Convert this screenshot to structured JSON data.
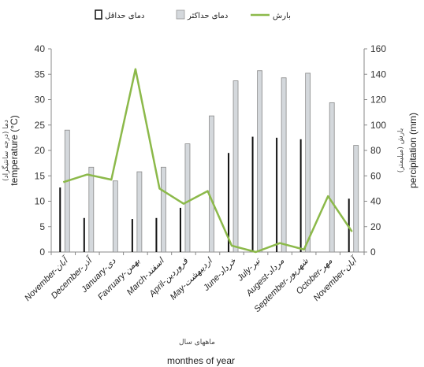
{
  "chart_data": {
    "type": "bar",
    "legend": [
      {
        "label": "دمای حداقل",
        "color": "#111111",
        "kind": "bar"
      },
      {
        "label": "دمای حداکثر",
        "color": "#d4d8dc",
        "kind": "bar"
      },
      {
        "label": "بارش",
        "color": "#8cb94a",
        "kind": "line"
      }
    ],
    "categories": [
      "November-آبان",
      "December-آذر",
      "January-دی",
      "Favruary-بهمن",
      "March-اسفند",
      "April-فروردین",
      "May-اردیبهشت",
      "June-خرداد",
      "July-تیر",
      "Augest-مرداد",
      "September-شهریور",
      "October-مهر",
      "November-آبان"
    ],
    "series": [
      {
        "name": "دمای حداقل",
        "axis": "left",
        "kind": "bar",
        "color": "#111111",
        "values": [
          12.7,
          6.7,
          0,
          6.5,
          6.7,
          8.7,
          0,
          19.5,
          22.7,
          22.5,
          22.2,
          0,
          10.5
        ]
      },
      {
        "name": "دمای حداکثر",
        "axis": "left",
        "kind": "bar",
        "color": "#d4d8dc",
        "values": [
          24,
          16.7,
          14,
          15.8,
          16.7,
          21.3,
          26.8,
          33.7,
          35.7,
          34.3,
          35.2,
          29.4,
          21
        ]
      },
      {
        "name": "بارش",
        "axis": "right",
        "kind": "line",
        "color": "#8cb94a",
        "values": [
          55,
          61,
          57,
          144,
          50,
          38,
          48,
          5,
          0,
          7,
          2,
          44,
          16
        ]
      }
    ],
    "y_left": {
      "label": "temperature (°C)",
      "label_fa": "دما (درجه سانتیگراد)",
      "range": [
        0,
        40
      ],
      "ticks": [
        0,
        5,
        10,
        15,
        20,
        25,
        30,
        35,
        40
      ]
    },
    "y_right": {
      "label": "percipitation (mm)",
      "label_fa": "بارش (میلیمتر)",
      "range": [
        0,
        160
      ],
      "ticks": [
        0,
        20,
        40,
        60,
        80,
        100,
        120,
        140,
        160
      ]
    },
    "x_label": "monthes of year",
    "x_label_fa": "ماههای سال",
    "legend_position": "top-center",
    "grid": false
  }
}
